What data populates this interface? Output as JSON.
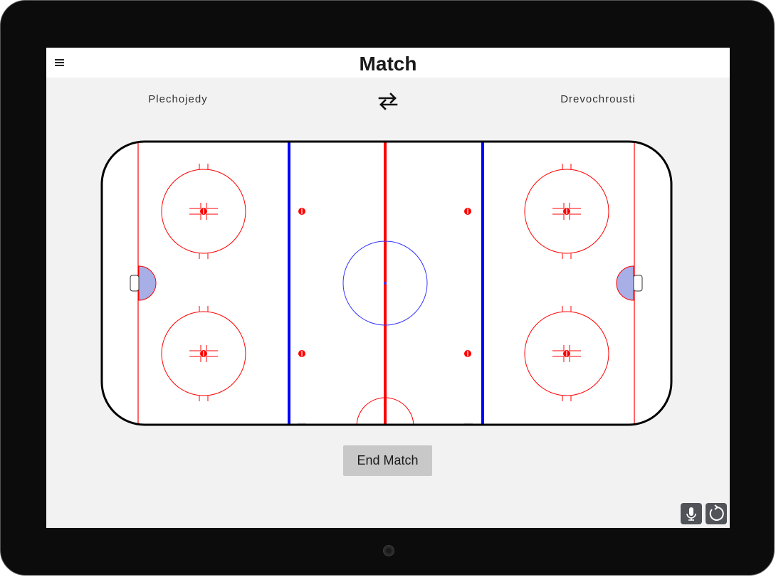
{
  "app": {
    "title": "Match",
    "menu_icon": "hamburger-menu-icon"
  },
  "teams": {
    "left": "Plechojedy",
    "right": "Drevochrousti",
    "swap_icon": "swap-arrows-icon"
  },
  "rink": {
    "colors": {
      "boards": "#000000",
      "red_lines": "#ff0000",
      "blue_lines": "#0000ff",
      "center_circle": "#3333ff",
      "crease_fill": "#a8aee6",
      "ice": "#ffffff"
    }
  },
  "actions": {
    "end_match_label": "End Match"
  },
  "fabs": {
    "mic_icon": "microphone-icon",
    "rotate_icon": "rotate-icon",
    "color": "#505358"
  }
}
